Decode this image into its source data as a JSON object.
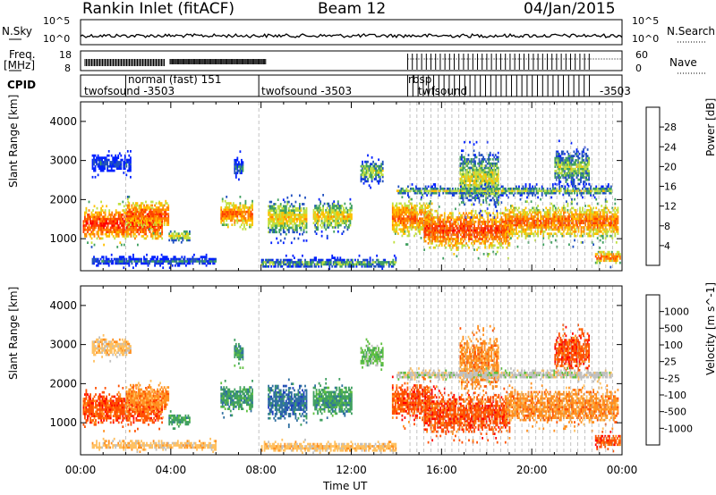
{
  "header": {
    "site": "Rankin Inlet (fitACF)",
    "beam": "Beam 12",
    "date": "04/Jan/2015"
  },
  "top_panels": {
    "nsky_label": "N.Sky",
    "nsky_ticks": [
      "10^5",
      "10^0"
    ],
    "nsearch_label": "N.Search",
    "nsearch_ticks": [
      "10^5",
      "10^0"
    ],
    "freq_label": "Freq.",
    "freq_unit": "[MHz]",
    "freq_ticks": [
      "18",
      "8"
    ],
    "nave_label": "Nave",
    "nave_ticks": [
      "60",
      "0"
    ],
    "cpid_label": "CPID",
    "cpid_entries": [
      {
        "text": "twofsound -3503",
        "t": 0.2
      },
      {
        "text": "normal (fast) 151",
        "t": 2.1
      },
      {
        "text": "twofsound -3503",
        "t": 7.9
      },
      {
        "text": "rbsp",
        "t": 14.6
      },
      {
        "text": "twfsound",
        "t": 14.9
      },
      {
        "text": "-3503",
        "t": 23.4
      }
    ]
  },
  "chart_data": [
    {
      "type": "heatmap",
      "title": "Power",
      "ylabel": "Slant Range [km]",
      "xlabel": "",
      "ylim": [
        180,
        4500
      ],
      "xlim": [
        0,
        24
      ],
      "yticks": [
        "1000",
        "2000",
        "3000",
        "4000"
      ],
      "colorbar": {
        "label": "Power [dB]",
        "ticks": [
          "28",
          "24",
          "20",
          "16",
          "12",
          "8",
          "4"
        ],
        "colors": [
          "#ff0000",
          "#ff4000",
          "#ff8000",
          "#ffc000",
          "#c0e040",
          "#40a060",
          "#2050c0",
          "#0020ff"
        ]
      }
    },
    {
      "type": "heatmap",
      "title": "Velocity",
      "ylabel": "Slant Range [km]",
      "xlabel": "Time UT",
      "ylim": [
        180,
        4500
      ],
      "xlim": [
        0,
        24
      ],
      "yticks": [
        "1000",
        "2000",
        "3000",
        "4000"
      ],
      "xticks": [
        "00:00",
        "04:00",
        "08:00",
        "12:00",
        "16:00",
        "20:00",
        "00:00"
      ],
      "colorbar": {
        "label": "Velocity [m s^-1]",
        "ticks": [
          "1000",
          "500",
          "100",
          "25",
          "-25",
          "-100",
          "-500",
          "-1000"
        ],
        "colors": [
          "#2040c0",
          "#3070a0",
          "#40a060",
          "#60c040",
          "#c0c0c0",
          "#ffc060",
          "#ff9020",
          "#ff5000",
          "#ff0000"
        ]
      }
    }
  ]
}
